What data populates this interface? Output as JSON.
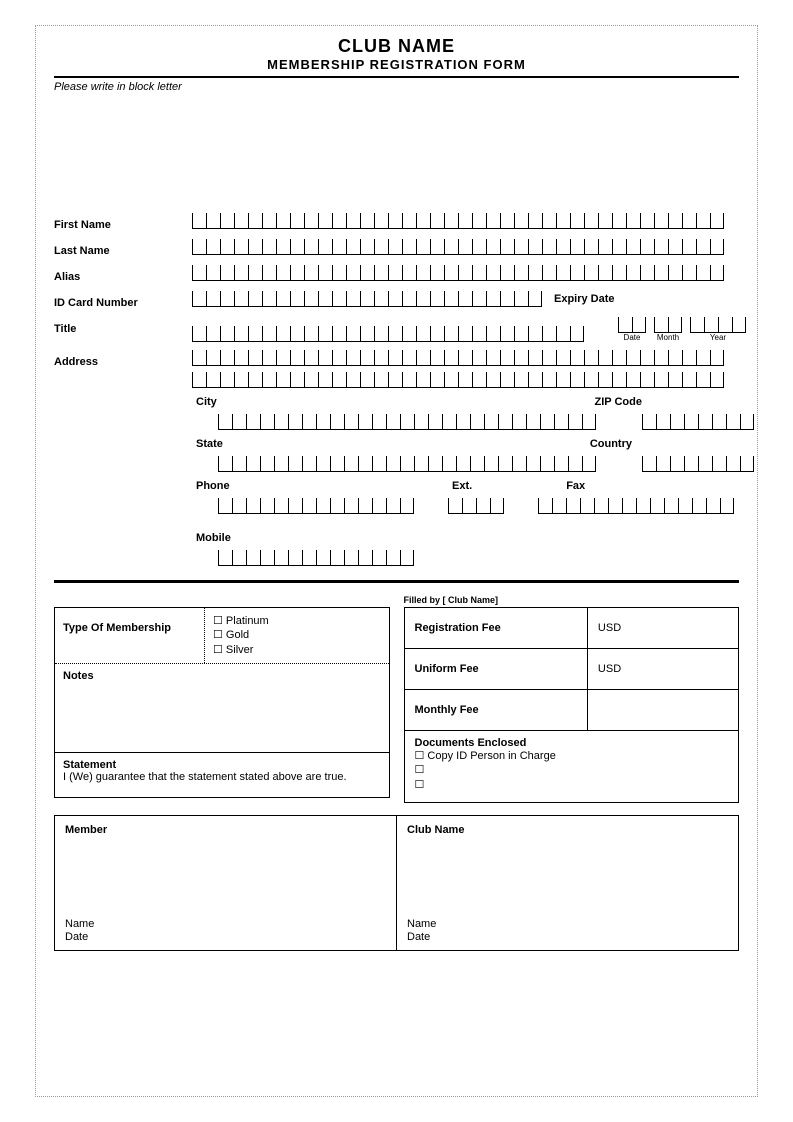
{
  "header": {
    "title": "CLUB NAME",
    "subtitle": "MEMBERSHIP REGISTRATION FORM",
    "instruction": "Please write in block letter"
  },
  "fields": {
    "first_name": "First Name",
    "last_name": "Last Name",
    "alias": "Alias",
    "id_card_number": "ID Card Number",
    "expiry_date": "Expiry Date",
    "title": "Title",
    "date": "Date",
    "month": "Month",
    "year": "Year",
    "address": "Address",
    "city": "City",
    "zip_code": "ZIP Code",
    "state": "State",
    "country": "Country",
    "phone": "Phone",
    "ext": "Ext.",
    "fax": "Fax",
    "mobile": "Mobile"
  },
  "membership": {
    "label": "Type Of Membership",
    "options": [
      "Platinum",
      "Gold",
      "Silver"
    ],
    "notes_label": "Notes"
  },
  "statement": {
    "title": "Statement",
    "text": "I (We) guarantee that the statement stated above are true."
  },
  "fees": {
    "filled_by": "Filled by [ Club Name]",
    "registration_label": "Registration Fee",
    "registration_value": "USD",
    "uniform_label": "Uniform Fee",
    "uniform_value": "USD",
    "monthly_label": "Monthly Fee",
    "monthly_value": ""
  },
  "documents": {
    "title": "Documents Enclosed",
    "items": [
      "Copy ID Person in Charge",
      "",
      ""
    ]
  },
  "signatures": {
    "member_title": "Member",
    "club_title": "Club Name",
    "name_label": "Name",
    "date_label": "Date"
  },
  "style": {
    "box_count_full": 38,
    "box_count_id": 25,
    "box_count_title": 28,
    "box_date": 2,
    "box_month": 2,
    "box_year": 4,
    "box_city": 27,
    "box_zip": 8,
    "box_state": 27,
    "box_country": 8,
    "box_phone": 14,
    "box_ext": 4,
    "box_fax": 14,
    "box_mobile": 14,
    "colors": {
      "border": "#000000",
      "dotted": "#999999",
      "background": "#ffffff"
    },
    "fonts": {
      "base": 11,
      "title": 18,
      "subtitle": 13
    }
  }
}
